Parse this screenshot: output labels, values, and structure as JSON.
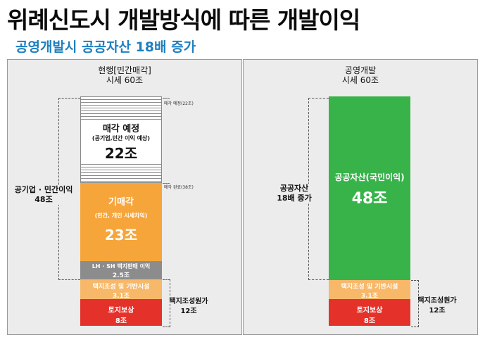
{
  "header": {
    "title": "위례신도시 개발방식에 따른 개발이익",
    "subtitle": "공영개발시 공공자산 18배 증가"
  },
  "colors": {
    "orange": "#f6a53a",
    "red": "#e4322b",
    "green": "#37b34a",
    "gray": "#8c8c8c",
    "subtitle": "#1e7fc0"
  },
  "chart_data": [
    {
      "type": "bar",
      "title": "현행[민간매각]",
      "total_label": "시세 60조",
      "total": 60,
      "segments": [
        {
          "name": "토지보상",
          "value_label": "8조",
          "value": 8
        },
        {
          "name": "택지조성 및 기반시설",
          "value_label": "3.1조",
          "value": 3.1
        },
        {
          "name": "LH · SH 택지판매 이익",
          "value_label": "2.5조",
          "value": 2.5
        },
        {
          "name": "기매각",
          "sub": "(민간, 개인 시세차익)",
          "value_label": "23조",
          "value": 23
        },
        {
          "name": "매각 예정",
          "sub": "(공기업,민간 이익 예상)",
          "value_label": "22조",
          "value": 22
        }
      ],
      "top_ticks": [
        "매각 예정(22조)",
        "매각 완료(38조)"
      ],
      "brackets": [
        {
          "label": "공기업 · 민간이익",
          "value_label": "48조"
        },
        {
          "label": "택지조성원가",
          "value_label": "12조"
        }
      ]
    },
    {
      "type": "bar",
      "title": "공영개발",
      "total_label": "시세 60조",
      "total": 60,
      "segments": [
        {
          "name": "토지보상",
          "value_label": "8조",
          "value": 8
        },
        {
          "name": "택지조성 및 기반시설",
          "value_label": "3.1조",
          "value": 3.1
        },
        {
          "name": "공공자산(국민이익)",
          "value_label": "48조",
          "value": 48
        }
      ],
      "brackets": [
        {
          "label": "공공자산",
          "value_label": "18배 증가"
        },
        {
          "label": "택지조성원가",
          "value_label": "12조"
        }
      ]
    }
  ]
}
